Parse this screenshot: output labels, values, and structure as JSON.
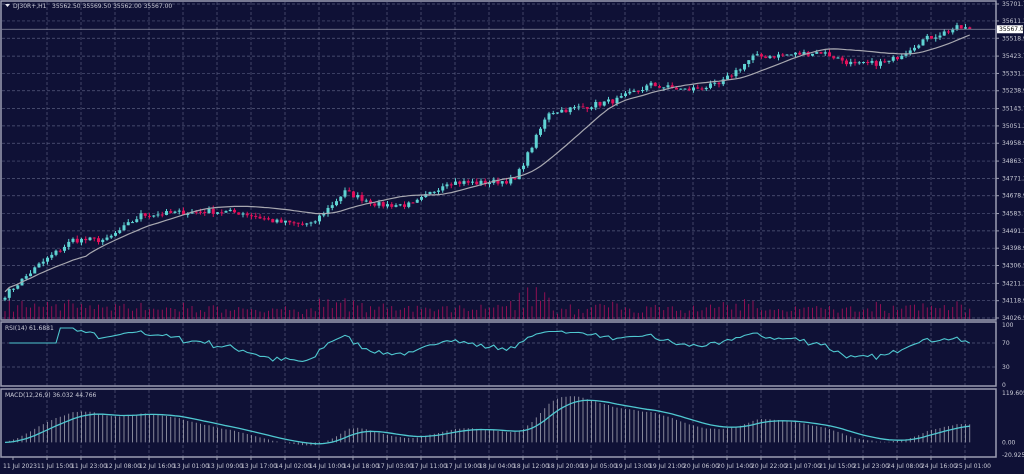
{
  "header": {
    "symbol": "DJ30R+,H1",
    "ohlc": "35562.50 35569.50 35562.00 35567.00"
  },
  "colors": {
    "background": "#0f1136",
    "bull": "#5fd3d3",
    "bear": "#e0105a",
    "ma": "#a8a8b0",
    "rsi": "#4fc8d0",
    "macd": "#4fc8d0",
    "macd_hist": "#c8c8d0",
    "volume": "#b0105a"
  },
  "chart_data": {
    "type": "candlestick",
    "timeframe": "H1",
    "price_axis_labels": [
      "35701.70",
      "35611.30",
      "35518.90",
      "35423.70",
      "35331.30",
      "35238.90",
      "35143.70",
      "35051.30",
      "34958.90",
      "34863.70",
      "34771.30",
      "34678.90",
      "34583.70",
      "34491.30",
      "34398.90",
      "34306.50",
      "34211.30",
      "34118.90",
      "34026.50"
    ],
    "price_range": [
      34026.5,
      35701.7
    ],
    "current_price": "35567.00",
    "time_labels": [
      "11 Jul 2023",
      "11 Jul 15:00",
      "11 Jul 23:00",
      "12 Jul 08:00",
      "12 Jul 16:00",
      "13 Jul 01:00",
      "13 Jul 09:00",
      "13 Jul 17:00",
      "14 Jul 02:00",
      "14 Jul 10:00",
      "14 Jul 18:00",
      "17 Jul 03:00",
      "17 Jul 11:00",
      "17 Jul 19:00",
      "18 Jul 04:00",
      "18 Jul 12:00",
      "18 Jul 20:00",
      "19 Jul 05:00",
      "19 Jul 13:00",
      "19 Jul 21:00",
      "20 Jul 06:00",
      "20 Jul 14:00",
      "20 Jul 22:00",
      "21 Jul 07:00",
      "21 Jul 15:00",
      "21 Jul 23:00",
      "24 Jul 08:00",
      "24 Jul 16:00",
      "25 Jul 01:00"
    ],
    "approx_close_at_time_labels": [
      34149,
      34309,
      34443,
      34443,
      34575,
      34587,
      34597,
      34587,
      34539,
      34523,
      34699,
      34630,
      34630,
      34752,
      34747,
      34763,
      35125,
      35152,
      35190,
      35270,
      35243,
      35270,
      35419,
      35430,
      35446,
      35376,
      35392,
      35510,
      35574
    ],
    "last_close": 35567.0,
    "grid": true,
    "rsi": {
      "label": "RSI(14) 61.6881",
      "axis_labels": [
        "100",
        "70",
        "30",
        "0"
      ],
      "range": [
        0,
        100
      ]
    },
    "macd": {
      "label": "MACD(12,26,9) 36.032 44.766",
      "axis_labels": [
        "119.605",
        "0.00",
        "-20.925"
      ],
      "range": [
        -20.925,
        119.605
      ]
    }
  }
}
